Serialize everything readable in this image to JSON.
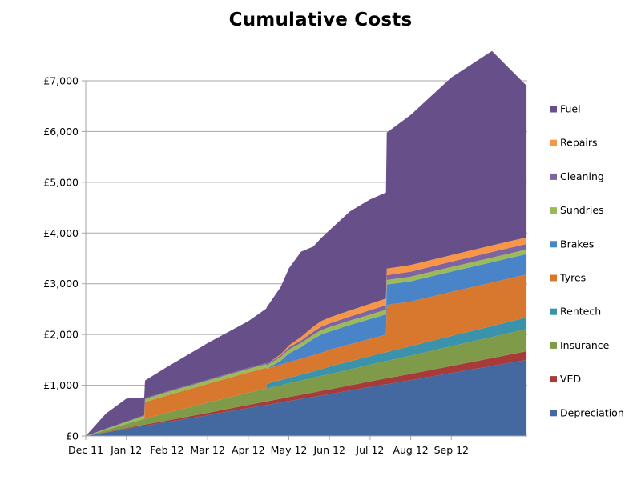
{
  "chart_data": {
    "type": "area",
    "stacked": true,
    "title": "Cumulative Costs",
    "xlabel": "",
    "ylabel": "",
    "ylim": [
      0,
      7000
    ],
    "y_ticks": [
      0,
      1000,
      2000,
      3000,
      4000,
      5000,
      6000,
      7000
    ],
    "y_tick_labels": [
      "£0",
      "£1,000",
      "£2,000",
      "£3,000",
      "£4,000",
      "£5,000",
      "£6,000",
      "£7,000"
    ],
    "x_unit": "months since Dec 11",
    "xlim": [
      0,
      10.85
    ],
    "x_ticks": [
      0,
      1,
      2,
      3,
      4,
      5,
      6,
      7,
      8,
      9
    ],
    "x_tick_labels": [
      "Dec 11",
      "Jan 12",
      "Feb 12",
      "Mar 12",
      "Apr 12",
      "May 12",
      "Jun 12",
      "Jul 12",
      "Aug 12",
      "Sep 12"
    ],
    "grid": "horizontal",
    "legend_position": "right",
    "x": [
      0,
      0.5,
      1.0,
      1.44,
      1.46,
      2.0,
      3.0,
      4.0,
      4.44,
      4.46,
      4.8,
      5.0,
      5.3,
      5.6,
      5.8,
      6.0,
      6.5,
      7.0,
      7.39,
      7.41,
      8.0,
      9.0,
      10.0,
      10.85
    ],
    "series": [
      {
        "name": "Depreciation",
        "color": "#4469A0",
        "values": [
          0,
          70,
          140,
          200,
          202,
          275,
          410,
          550,
          610,
          612,
          660,
          690,
          730,
          770,
          800,
          825,
          895,
          965,
          1020,
          1022,
          1100,
          1240,
          1380,
          1500
        ]
      },
      {
        "name": "VED",
        "color": "#A63B3A",
        "values": [
          0,
          8,
          16,
          22,
          22,
          30,
          46,
          62,
          69,
          69,
          74,
          78,
          82,
          87,
          90,
          93,
          101,
          109,
          115,
          115,
          124,
          140,
          156,
          170
        ]
      },
      {
        "name": "Insurance",
        "color": "#7F9A48",
        "values": [
          0,
          40,
          80,
          115,
          115,
          150,
          200,
          240,
          255,
          255,
          265,
          272,
          280,
          290,
          295,
          300,
          315,
          330,
          342,
          342,
          360,
          390,
          415,
          440
        ]
      },
      {
        "name": "Rentech",
        "color": "#3A93AA",
        "values": [
          0,
          0,
          0,
          0,
          0,
          0,
          0,
          0,
          0,
          90,
          100,
          105,
          115,
          125,
          130,
          150,
          160,
          170,
          175,
          175,
          185,
          200,
          215,
          225
        ]
      },
      {
        "name": "Tyres",
        "color": "#D8782E",
        "values": [
          0,
          0,
          0,
          0,
          330,
          345,
          370,
          400,
          410,
          300,
          305,
          310,
          315,
          320,
          325,
          330,
          335,
          340,
          345,
          930,
          880,
          870,
          860,
          850
        ]
      },
      {
        "name": "Brakes",
        "color": "#4A84C8",
        "values": [
          0,
          0,
          0,
          0,
          0,
          0,
          0,
          0,
          0,
          0,
          80,
          170,
          230,
          320,
          360,
          360,
          380,
          390,
          400,
          400,
          400,
          400,
          400,
          400
        ]
      },
      {
        "name": "Sundries",
        "color": "#9BBB59",
        "values": [
          0,
          20,
          40,
          60,
          60,
          62,
          65,
          68,
          70,
          70,
          75,
          78,
          80,
          82,
          85,
          87,
          88,
          90,
          90,
          90,
          90,
          90,
          90,
          90
        ]
      },
      {
        "name": "Cleaning",
        "color": "#8064A2",
        "values": [
          0,
          5,
          10,
          15,
          15,
          17,
          20,
          22,
          25,
          25,
          30,
          40,
          50,
          60,
          70,
          75,
          80,
          85,
          90,
          95,
          100,
          105,
          110,
          110
        ]
      },
      {
        "name": "Repairs",
        "color": "#F79646",
        "values": [
          0,
          0,
          0,
          0,
          0,
          0,
          0,
          0,
          0,
          0,
          20,
          40,
          70,
          100,
          110,
          115,
          120,
          125,
          130,
          130,
          130,
          130,
          130,
          130
        ]
      },
      {
        "name": "Fuel",
        "color": "#67508A",
        "values": [
          0,
          300,
          450,
          350,
          350,
          480,
          720,
          920,
          1070,
          1120,
          1330,
          1520,
          1680,
          1580,
          1640,
          1720,
          1950,
          2060,
          2090,
          2680,
          2960,
          3500,
          3830,
          2990
        ]
      }
    ],
    "legend_order": [
      "Fuel",
      "Repairs",
      "Cleaning",
      "Sundries",
      "Brakes",
      "Tyres",
      "Rentech",
      "Insurance",
      "VED",
      "Depreciation"
    ],
    "total_end_approx": 6860
  }
}
